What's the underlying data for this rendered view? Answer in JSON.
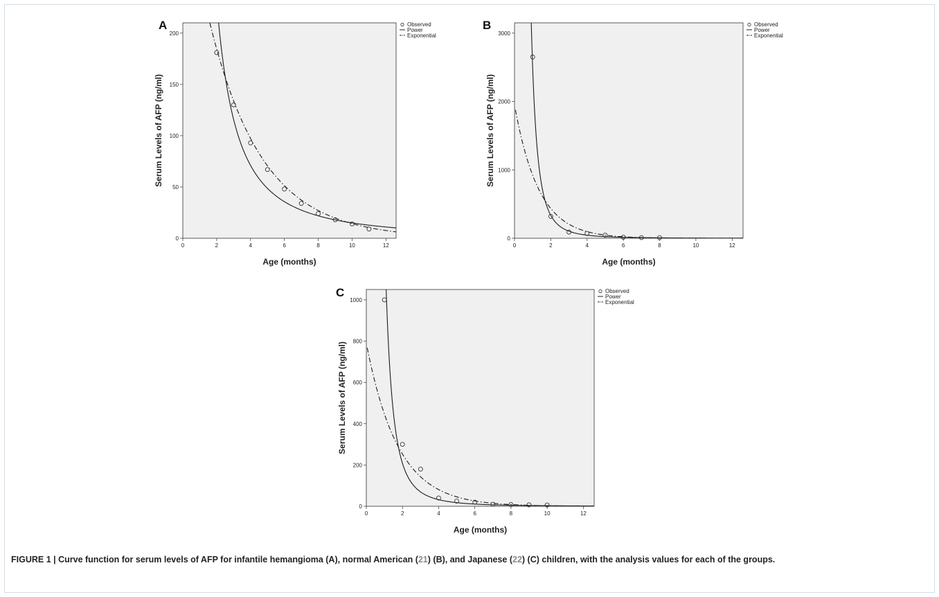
{
  "chart_data": [
    {
      "type": "line",
      "panel": "A",
      "xlabel": "Age (months)",
      "ylabel": "Serum Levels of AFP (ng/ml)",
      "xlim": [
        0,
        12.6
      ],
      "ylim": [
        0,
        210
      ],
      "xticks": [
        0,
        2,
        4,
        6,
        8,
        10,
        12
      ],
      "yticks": [
        0,
        50,
        100,
        150,
        200
      ],
      "legend": [
        "Observed",
        "Power",
        "Exponential"
      ],
      "legend_position": "top-right outside",
      "series": [
        {
          "name": "Observed",
          "kind": "scatter",
          "x": [
            2,
            3,
            4,
            5,
            6,
            7,
            8,
            9,
            10,
            11
          ],
          "y": [
            181,
            130,
            93,
            67,
            48,
            34,
            24,
            18,
            14,
            9
          ]
        },
        {
          "name": "Power",
          "kind": "curve",
          "model": "power",
          "a": 750,
          "b": -1.7
        },
        {
          "name": "Exponential",
          "kind": "curve",
          "model": "exponential",
          "a": 350,
          "b": -0.32
        }
      ]
    },
    {
      "type": "line",
      "panel": "B",
      "xlabel": "Age (months)",
      "ylabel": "Serum Levels of AFP (ng/ml)",
      "xlim": [
        0,
        12.6
      ],
      "ylim": [
        0,
        3150
      ],
      "xticks": [
        0,
        2,
        4,
        6,
        8,
        10,
        12
      ],
      "yticks": [
        0,
        1000,
        2000,
        3000
      ],
      "legend": [
        "Observed",
        "Power",
        "Exponential"
      ],
      "legend_position": "top-right outside",
      "series": [
        {
          "name": "Observed",
          "kind": "scatter",
          "x": [
            1,
            2,
            3,
            4,
            5,
            6,
            7,
            8
          ],
          "y": [
            2650,
            320,
            90,
            70,
            45,
            15,
            10,
            8
          ]
        },
        {
          "name": "Power",
          "kind": "curve",
          "model": "power",
          "a": 2500,
          "b": -2.9
        },
        {
          "name": "Exponential",
          "kind": "curve",
          "model": "exponential",
          "a": 1950,
          "b": -0.75
        }
      ]
    },
    {
      "type": "line",
      "panel": "C",
      "xlabel": "Age (months)",
      "ylabel": "Serum Levels of AFP (ng/ml)",
      "xlim": [
        0,
        12.6
      ],
      "ylim": [
        0,
        1050
      ],
      "xticks": [
        0,
        2,
        4,
        6,
        8,
        10,
        12
      ],
      "yticks": [
        0,
        200,
        400,
        600,
        800,
        1000
      ],
      "legend": [
        "Observed",
        "Power",
        "Exponential"
      ],
      "legend_position": "top-right outside",
      "series": [
        {
          "name": "Observed",
          "kind": "scatter",
          "x": [
            1,
            2,
            3,
            4,
            5,
            6,
            7,
            8,
            9,
            10
          ],
          "y": [
            1000,
            300,
            180,
            40,
            25,
            20,
            10,
            8,
            7,
            6
          ]
        },
        {
          "name": "Power",
          "kind": "curve",
          "model": "power",
          "a": 1350,
          "b": -2.7
        },
        {
          "name": "Exponential",
          "kind": "curve",
          "model": "exponential",
          "a": 790,
          "b": -0.57
        }
      ]
    }
  ],
  "caption": {
    "lead": "FIGURE 1 | Curve function for serum levels of AFP for infantile hemangioma (A), normal American (",
    "ref1": "21",
    "mid1": ") (B), and Japanese (",
    "ref2": "22",
    "tail": ") (C) children, with the analysis values for each of the groups."
  }
}
